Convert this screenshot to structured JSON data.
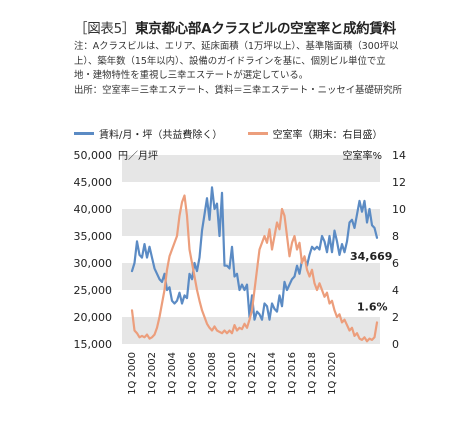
{
  "title": {
    "tag": "［図表5］",
    "text": "東京都心部Aクラスビルの空室率と成約賃料"
  },
  "note": "注：Aクラスビルは、エリア、延床面積（1万坪以上）、基準階面積（300坪以上）、築年数（15年以内）、設備のガイドラインを基に、個別ビル単位で立地・建物特性を重視し三幸エステートが選定している。",
  "source": "出所：空室率＝三幸エステート、賃料＝三幸エステート・ニッセイ基礎研究所",
  "chart_data": {
    "type": "line",
    "title": "東京都心部Aクラスビルの空室率と成約賃料",
    "left_axis": {
      "label": "円／月坪",
      "ticks": [
        15000,
        20000,
        25000,
        30000,
        35000,
        40000,
        45000,
        50000
      ],
      "ylim": [
        15000,
        50000
      ]
    },
    "right_axis": {
      "label": "空室率%",
      "ticks": [
        0,
        2,
        4,
        6,
        8,
        10,
        12,
        14
      ],
      "ylim": [
        0,
        14
      ]
    },
    "x_tick_labels": [
      "1Q 2000",
      "1Q 2002",
      "1Q 2004",
      "1Q 2006",
      "1Q 2008",
      "1Q 2010",
      "1Q 2012",
      "1Q 2014",
      "1Q 2016",
      "1Q 2018",
      "1Q 2020"
    ],
    "x_range": [
      "1Q 2000",
      "2Q 2021"
    ],
    "grid": "horizontal alternating bands",
    "legend": "top-left",
    "annotations": [
      {
        "text": "34,669",
        "series": "rent"
      },
      {
        "text": "1.6%",
        "series": "vacancy"
      }
    ],
    "series": [
      {
        "name": "賃料/月・坪（共益費除く）",
        "key": "rent",
        "axis": "left",
        "color": "#5b8bc4",
        "values": [
          28500,
          30000,
          34000,
          31500,
          31000,
          33500,
          31000,
          33000,
          31000,
          29000,
          28000,
          27000,
          26500,
          28000,
          25000,
          25500,
          23000,
          22500,
          23000,
          24500,
          22500,
          24000,
          23500,
          28000,
          27000,
          30000,
          28500,
          31000,
          36000,
          39000,
          42000,
          38000,
          44000,
          40000,
          41000,
          35000,
          43000,
          29500,
          29500,
          29000,
          33000,
          27500,
          28000,
          25000,
          26000,
          25000,
          26000,
          20000,
          24000,
          19500,
          21000,
          20500,
          19500,
          22500,
          22000,
          19500,
          22500,
          21500,
          21000,
          24000,
          22000,
          26500,
          25000,
          26000,
          27000,
          27500,
          29500,
          28000,
          30500,
          31000,
          29500,
          31500,
          33000,
          32500,
          33000,
          32500,
          35000,
          34000,
          32000,
          35000,
          32000,
          36000,
          34000,
          31500,
          33500,
          32000,
          34000,
          37500,
          38000,
          36500,
          39000,
          41500,
          39500,
          41500,
          37500,
          40000,
          37000,
          36500,
          34669
        ]
      },
      {
        "name": "空室率（期末：右目盛）",
        "key": "vacancy",
        "axis": "right",
        "color": "#ec9e7c",
        "values": [
          2.5,
          1.0,
          0.8,
          0.5,
          0.6,
          0.5,
          0.7,
          0.4,
          0.5,
          0.7,
          1.2,
          2.0,
          3.0,
          4.0,
          5.5,
          6.5,
          7.0,
          7.5,
          8.0,
          9.5,
          10.5,
          11.0,
          9.5,
          7.0,
          6.0,
          5.0,
          4.0,
          3.2,
          2.5,
          2.0,
          1.5,
          1.2,
          1.0,
          1.3,
          1.0,
          0.9,
          0.8,
          1.0,
          0.8,
          1.0,
          0.8,
          1.4,
          1.0,
          1.2,
          1.1,
          1.5,
          1.2,
          1.8,
          2.5,
          4.0,
          5.5,
          7.0,
          7.5,
          8.0,
          7.5,
          8.5,
          7.0,
          8.0,
          9.0,
          8.5,
          10.0,
          9.5,
          8.0,
          6.5,
          7.5,
          8.0,
          7.0,
          7.5,
          6.0,
          6.5,
          5.5,
          5.0,
          5.5,
          4.5,
          4.0,
          4.5,
          4.0,
          3.5,
          3.8,
          3.0,
          3.2,
          2.5,
          2.0,
          2.2,
          1.6,
          1.8,
          1.4,
          1.0,
          1.2,
          0.6,
          0.8,
          0.4,
          0.3,
          0.5,
          0.2,
          0.4,
          0.3,
          0.5,
          1.6
        ]
      }
    ]
  }
}
